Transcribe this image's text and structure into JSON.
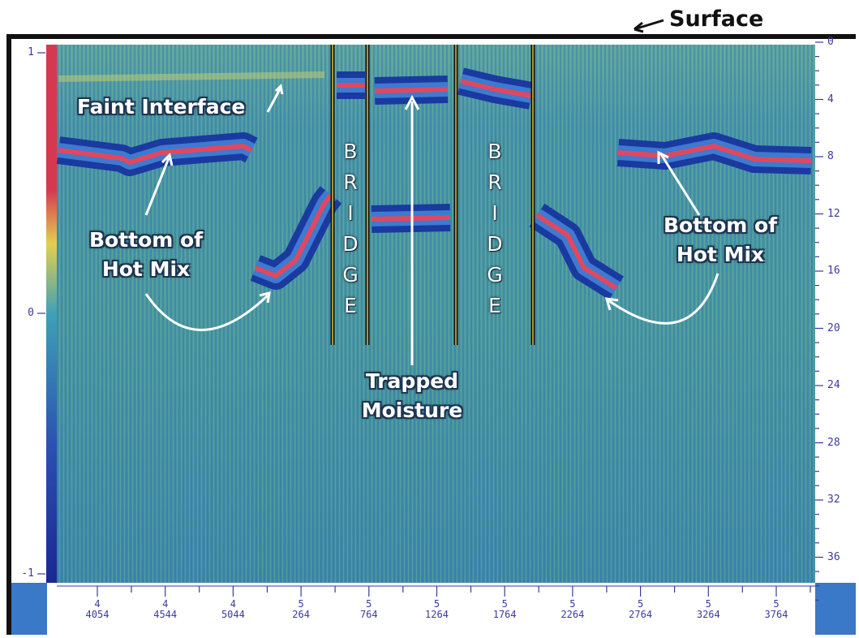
{
  "header": {
    "surface": "Surface"
  },
  "annotations": {
    "faint_interface": "Faint Interface",
    "bottom_left": {
      "lines": [
        "Bottom of",
        "Hot Mix"
      ]
    },
    "bottom_right": {
      "lines": [
        "Bottom of",
        "Hot Mix"
      ]
    },
    "trapped": {
      "lines": [
        "Trapped",
        "Moisture"
      ]
    },
    "bridges": [
      "BRIDGE",
      "BRIDGE"
    ]
  },
  "amplitude_ticks": [
    "1",
    "0",
    "-1"
  ],
  "depth_ticks": [
    "0",
    "4",
    "8",
    "12",
    "16",
    "20",
    "24",
    "28",
    "32",
    "36"
  ],
  "distance_ticks": [
    {
      "major": "4",
      "minor": "4054"
    },
    {
      "major": "4",
      "minor": "4544"
    },
    {
      "major": "4",
      "minor": "5044"
    },
    {
      "major": "5",
      "minor": "264"
    },
    {
      "major": "5",
      "minor": "764"
    },
    {
      "major": "5",
      "minor": "1264"
    },
    {
      "major": "5",
      "minor": "1764"
    },
    {
      "major": "5",
      "minor": "2264"
    },
    {
      "major": "5",
      "minor": "2764"
    },
    {
      "major": "5",
      "minor": "3264"
    },
    {
      "major": "5",
      "minor": "3764"
    }
  ]
}
